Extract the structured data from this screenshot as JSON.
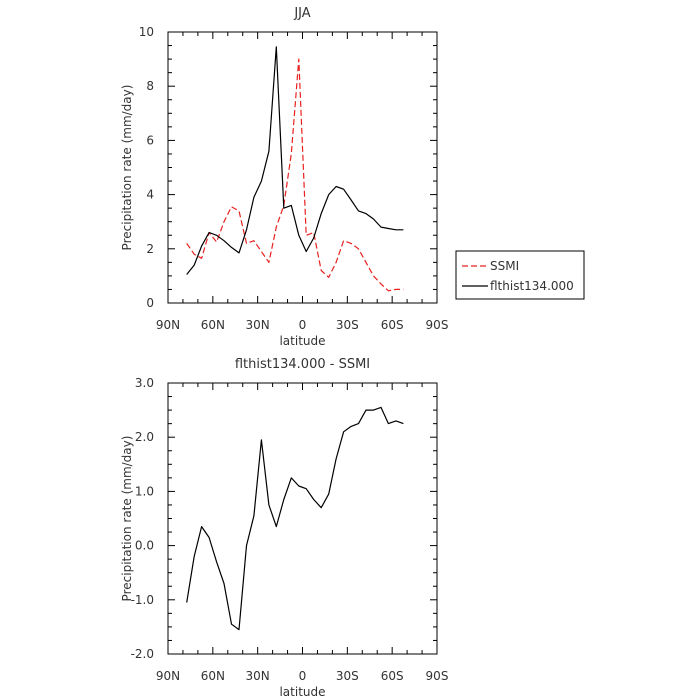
{
  "chart_data": [
    {
      "type": "line",
      "title": "JJA",
      "xlabel": "latitude",
      "ylabel": "Precipitation rate (mm/day)",
      "xlim": [
        90,
        -90
      ],
      "ylim": [
        0,
        10
      ],
      "xticks": [
        90,
        60,
        30,
        0,
        -30,
        -60,
        -90
      ],
      "xtick_labels": [
        "90N",
        "60N",
        "30N",
        "0",
        "30S",
        "60S",
        "90S"
      ],
      "yticks": [
        0,
        2,
        4,
        6,
        8,
        10
      ],
      "ytick_labels": [
        "0",
        "2",
        "4",
        "6",
        "8",
        "10"
      ],
      "grid": false,
      "legend": "right",
      "series": [
        {
          "name": "SSMI",
          "color": "#e8211f",
          "dash": "dashed",
          "x": [
            77.5,
            72.5,
            67.5,
            62.5,
            57.5,
            52.5,
            47.5,
            42.5,
            37.5,
            32.5,
            27.5,
            22.5,
            17.5,
            12.5,
            7.5,
            2.5,
            -2.5,
            -7.5,
            -12.5,
            -17.5,
            -22.5,
            -27.5,
            -32.5,
            -37.5,
            -42.5,
            -47.5,
            -52.5,
            -57.5,
            -62.5,
            -67.5
          ],
          "y": [
            2.2,
            1.8,
            1.65,
            2.6,
            2.25,
            3.0,
            3.55,
            3.4,
            2.2,
            2.3,
            1.9,
            1.5,
            2.8,
            3.6,
            5.5,
            9.0,
            2.5,
            2.6,
            1.2,
            0.95,
            1.5,
            2.3,
            2.2,
            2.0,
            1.5,
            1.0,
            0.7,
            0.45,
            0.5,
            0.5
          ]
        },
        {
          "name": "flthist134.000",
          "color": "#000000",
          "dash": "solid",
          "x": [
            77.5,
            72.5,
            67.5,
            62.5,
            57.5,
            52.5,
            47.5,
            42.5,
            37.5,
            32.5,
            27.5,
            22.5,
            17.5,
            12.5,
            7.5,
            2.5,
            -2.5,
            -7.5,
            -12.5,
            -17.5,
            -22.5,
            -27.5,
            -32.5,
            -37.5,
            -42.5,
            -47.5,
            -52.5,
            -57.5,
            -62.5,
            -67.5
          ],
          "y": [
            1.05,
            1.4,
            2.1,
            2.6,
            2.5,
            2.3,
            2.05,
            1.85,
            2.7,
            3.9,
            4.5,
            5.6,
            9.45,
            3.5,
            3.6,
            2.5,
            1.9,
            2.4,
            3.3,
            4.0,
            4.3,
            4.2,
            3.8,
            3.4,
            3.3,
            3.1,
            2.8,
            2.75,
            2.7,
            2.7
          ]
        }
      ]
    },
    {
      "type": "line",
      "title": "flthist134.000 - SSMI",
      "xlabel": "latitude",
      "ylabel": "Precipitation rate (mm/day)",
      "xlim": [
        90,
        -90
      ],
      "ylim": [
        -2.0,
        3.0
      ],
      "xticks": [
        90,
        60,
        30,
        0,
        -30,
        -60,
        -90
      ],
      "xtick_labels": [
        "90N",
        "60N",
        "30N",
        "0",
        "30S",
        "60S",
        "90S"
      ],
      "yticks": [
        -2,
        -1,
        0,
        1,
        2,
        3
      ],
      "ytick_labels": [
        "-2.0",
        "-1.0",
        "0.0",
        "1.0",
        "2.0",
        "3.0"
      ],
      "grid": false,
      "series": [
        {
          "color": "#000000",
          "dash": "solid",
          "x": [
            77.5,
            72.5,
            67.5,
            62.5,
            57.5,
            52.5,
            47.5,
            42.5,
            37.5,
            32.5,
            27.5,
            22.5,
            17.5,
            12.5,
            7.5,
            2.5,
            -2.5,
            -7.5,
            -12.5,
            -17.5,
            -22.5,
            -27.5,
            -32.5,
            -37.5,
            -42.5,
            -47.5,
            -52.5,
            -57.5,
            -62.5,
            -67.5
          ],
          "y": [
            -1.05,
            -0.2,
            0.35,
            0.15,
            -0.3,
            -0.7,
            -1.45,
            -1.55,
            0.0,
            0.55,
            1.95,
            0.75,
            0.35,
            0.85,
            1.25,
            1.1,
            1.05,
            0.85,
            0.7,
            0.95,
            1.6,
            2.1,
            2.2,
            2.25,
            2.5,
            2.5,
            2.55,
            2.25,
            2.3,
            2.25
          ]
        }
      ]
    }
  ]
}
